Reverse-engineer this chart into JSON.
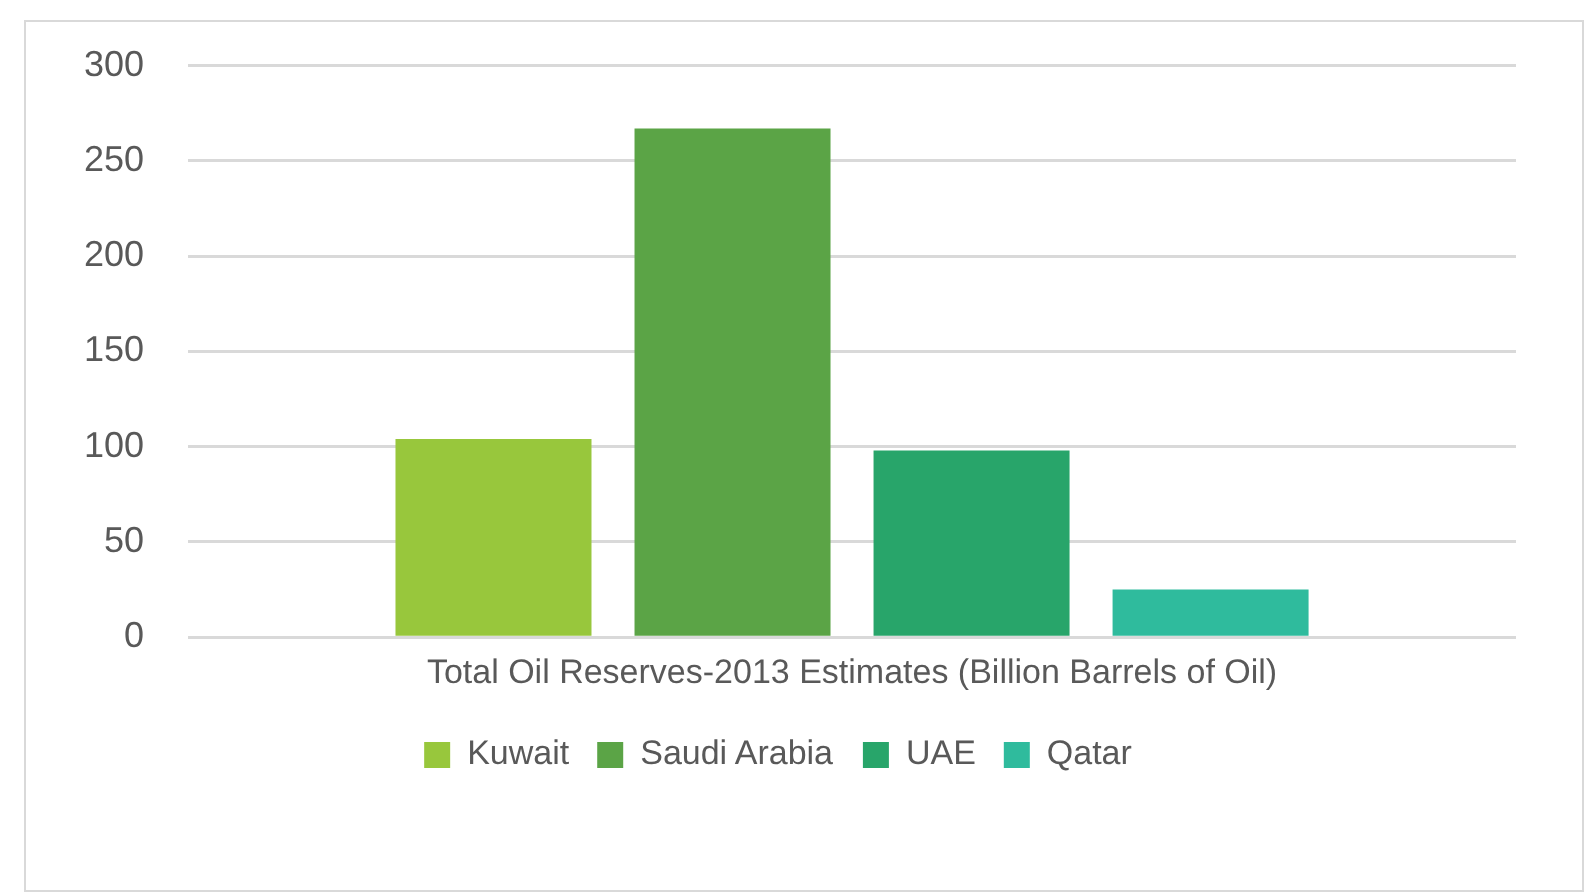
{
  "chart_data": {
    "type": "bar",
    "categories": [
      "Total Oil Reserves-2013 Estimates (Billion Barrels of Oil)"
    ],
    "series": [
      {
        "name": "Kuwait",
        "color": "#98c73c",
        "values": [
          104
        ]
      },
      {
        "name": "Saudi Arabia",
        "color": "#5ba446",
        "values": [
          267
        ]
      },
      {
        "name": "UAE",
        "color": "#28a56a",
        "values": [
          98
        ]
      },
      {
        "name": "Qatar",
        "color": "#2fbb9d",
        "values": [
          25
        ]
      }
    ],
    "ylim": [
      0,
      300
    ],
    "yticks": [
      0,
      50,
      100,
      150,
      200,
      250,
      300
    ],
    "grid": "y",
    "legend": "bottom"
  }
}
